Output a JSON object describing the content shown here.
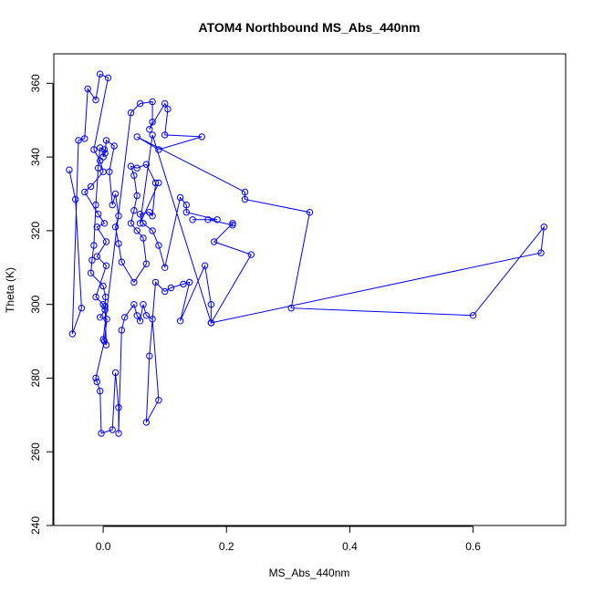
{
  "chart_data": {
    "type": "line",
    "title": "ATOM4 Northbound MS_Abs_440nm",
    "xlabel": "MS_Abs_440nm",
    "ylabel": "Theta (K)",
    "xlim": [
      -0.08,
      0.75
    ],
    "ylim": [
      240,
      368
    ],
    "x_ticks": [
      0.0,
      0.2,
      0.4,
      0.6
    ],
    "x_tick_labels": [
      "0.0",
      "0.2",
      "0.4",
      "0.6"
    ],
    "y_ticks": [
      240,
      260,
      280,
      300,
      320,
      340,
      360
    ],
    "y_tick_labels": [
      "240",
      "260",
      "280",
      "300",
      "320",
      "340",
      "360"
    ],
    "grid": false,
    "series": [
      {
        "color": "#0000ff",
        "marker": "open-circle",
        "line": true,
        "points": [
          [
            -0.055,
            336.5
          ],
          [
            -0.045,
            328.5
          ],
          [
            -0.035,
            299
          ],
          [
            -0.05,
            292
          ],
          [
            -0.04,
            344.5
          ],
          [
            -0.03,
            345
          ],
          [
            -0.025,
            358.5
          ],
          [
            -0.012,
            355.5
          ],
          [
            -0.005,
            362.5
          ],
          [
            0.008,
            361.5
          ],
          [
            -0.015,
            342
          ],
          [
            -0.005,
            339
          ],
          [
            0.0,
            336
          ],
          [
            -0.02,
            332
          ],
          [
            -0.03,
            330.5
          ],
          [
            -0.008,
            324.5
          ],
          [
            0.002,
            322
          ],
          [
            -0.01,
            321
          ],
          [
            0.005,
            317
          ],
          [
            -0.01,
            313
          ],
          [
            0.005,
            310.5
          ],
          [
            -0.012,
            302
          ],
          [
            0.0,
            300
          ],
          [
            0.003,
            298.5
          ],
          [
            -0.005,
            296.5
          ],
          [
            0.006,
            296
          ],
          [
            0.002,
            290
          ],
          [
            -0.012,
            280
          ],
          [
            -0.01,
            279
          ],
          [
            -0.005,
            276.5
          ],
          [
            -0.003,
            265
          ],
          [
            0.015,
            266
          ],
          [
            0.02,
            281.5
          ],
          [
            0.025,
            272
          ],
          [
            0.025,
            265
          ],
          [
            0.03,
            293
          ],
          [
            0.035,
            296.5
          ],
          [
            0.05,
            300
          ],
          [
            0.055,
            297
          ],
          [
            0.06,
            295.5
          ],
          [
            0.065,
            300
          ],
          [
            0.07,
            297
          ],
          [
            0.08,
            296
          ],
          [
            0.09,
            274
          ],
          [
            0.07,
            268
          ],
          [
            0.075,
            286
          ],
          [
            0.085,
            306
          ],
          [
            0.1,
            303.5
          ],
          [
            0.11,
            304.5
          ],
          [
            0.13,
            305.5
          ],
          [
            0.14,
            306
          ],
          [
            0.125,
            295.5
          ],
          [
            0.165,
            310.5
          ],
          [
            0.175,
            300
          ],
          [
            0.175,
            295
          ],
          [
            0.24,
            313.5
          ],
          [
            0.18,
            317
          ],
          [
            0.21,
            322
          ],
          [
            0.21,
            321.5
          ],
          [
            0.17,
            323
          ],
          [
            0.145,
            323
          ],
          [
            0.185,
            323
          ],
          [
            0.135,
            325
          ],
          [
            0.135,
            327
          ],
          [
            0.125,
            329
          ],
          [
            0.1,
            310
          ],
          [
            0.09,
            316
          ],
          [
            0.08,
            320
          ],
          [
            0.065,
            322
          ],
          [
            0.06,
            324.5
          ],
          [
            0.075,
            325
          ],
          [
            0.08,
            324
          ],
          [
            0.085,
            333
          ],
          [
            0.07,
            338
          ],
          [
            0.055,
            337
          ],
          [
            0.045,
            337.5
          ],
          [
            0.05,
            335
          ],
          [
            0.055,
            329.5
          ],
          [
            0.05,
            325.5
          ],
          [
            0.045,
            322
          ],
          [
            0.055,
            320
          ],
          [
            0.065,
            318
          ],
          [
            0.07,
            311
          ],
          [
            0.05,
            306
          ],
          [
            0.03,
            311.5
          ],
          [
            0.025,
            316.5
          ],
          [
            0.02,
            321
          ],
          [
            0.025,
            324
          ],
          [
            0.02,
            330
          ],
          [
            0.015,
            327
          ],
          [
            0.01,
            336
          ],
          [
            0.018,
            343
          ],
          [
            0.005,
            344.5
          ],
          [
            0.003,
            341
          ],
          [
            0.0,
            340
          ],
          [
            0.002,
            342
          ],
          [
            -0.005,
            342.5
          ],
          [
            -0.008,
            337
          ],
          [
            -0.012,
            327
          ],
          [
            -0.015,
            316
          ],
          [
            -0.018,
            312
          ],
          [
            -0.02,
            308.5
          ],
          [
            0.0,
            305
          ],
          [
            0.004,
            302
          ],
          [
            0.003,
            299.5
          ],
          [
            0.005,
            289
          ],
          [
            0.0,
            290.5
          ],
          [
            0.045,
            352
          ],
          [
            0.06,
            354.5
          ],
          [
            0.08,
            355
          ],
          [
            0.08,
            349.5
          ],
          [
            0.075,
            347.5
          ],
          [
            0.1,
            354.5
          ],
          [
            0.105,
            353
          ],
          [
            0.1,
            346
          ],
          [
            0.16,
            345.5
          ],
          [
            0.09,
            342
          ],
          [
            0.055,
            345.5
          ],
          [
            0.23,
            330.5
          ],
          [
            0.23,
            328.5
          ],
          [
            0.335,
            325
          ],
          [
            0.305,
            299
          ],
          [
            0.6,
            297
          ],
          [
            0.715,
            321
          ],
          [
            0.71,
            314
          ],
          [
            0.175,
            295
          ],
          [
            0.08,
            346
          ],
          [
            0.06,
            322
          ],
          [
            0.09,
            333
          ]
        ]
      }
    ]
  }
}
